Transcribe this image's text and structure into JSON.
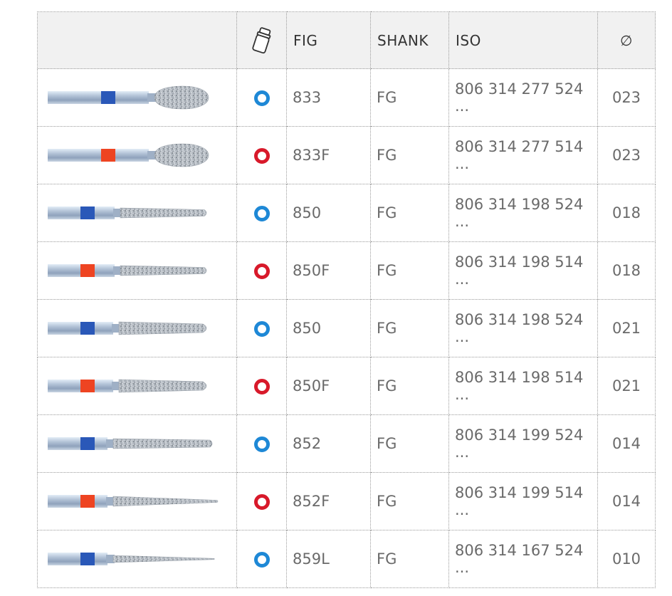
{
  "header": {
    "fig": "FIG",
    "shank": "SHANK",
    "iso": "ISO",
    "diameter": "∅",
    "packaging_icon": "canister-icon"
  },
  "colors": {
    "blue_ring": "#1e88d6",
    "red_ring": "#d8192a",
    "blue_band": "#2a58b8",
    "red_band": "#ee4422"
  },
  "rows": [
    {
      "shape": "oval",
      "band": "blue",
      "ring": "blue",
      "fig": "833",
      "shank": "FG",
      "iso": "806 314 277 524 ...",
      "diam": "023"
    },
    {
      "shape": "oval",
      "band": "red",
      "ring": "red",
      "fig": "833F",
      "shank": "FG",
      "iso": "806 314 277 514 ...",
      "diam": "023"
    },
    {
      "shape": "taper-short",
      "band": "blue",
      "ring": "blue",
      "fig": "850",
      "shank": "FG",
      "iso": "806 314 198 524 ...",
      "diam": "018"
    },
    {
      "shape": "taper-short",
      "band": "red",
      "ring": "red",
      "fig": "850F",
      "shank": "FG",
      "iso": "806 314 198 514 ...",
      "diam": "018"
    },
    {
      "shape": "taper-wide",
      "band": "blue",
      "ring": "blue",
      "fig": "850",
      "shank": "FG",
      "iso": "806 314 198 524 ...",
      "diam": "021"
    },
    {
      "shape": "taper-wide",
      "band": "red",
      "ring": "red",
      "fig": "850F",
      "shank": "FG",
      "iso": "806 314 198 514 ...",
      "diam": "021"
    },
    {
      "shape": "taper-long",
      "band": "blue",
      "ring": "blue",
      "fig": "852",
      "shank": "FG",
      "iso": "806 314 199 524 ...",
      "diam": "014"
    },
    {
      "shape": "taper-point",
      "band": "red",
      "ring": "red",
      "fig": "852F",
      "shank": "FG",
      "iso": "806 314 199 514 ...",
      "diam": "014"
    },
    {
      "shape": "needle",
      "band": "blue",
      "ring": "blue",
      "fig": "859L",
      "shank": "FG",
      "iso": "806 314 167 524 ...",
      "diam": "010"
    }
  ]
}
